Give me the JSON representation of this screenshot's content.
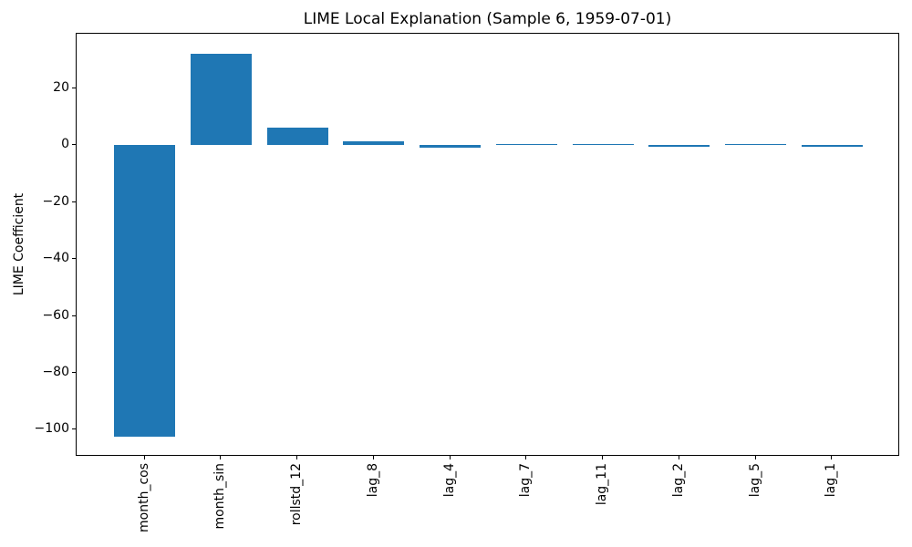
{
  "chart_data": {
    "type": "bar",
    "title": "LIME Local Explanation (Sample 6, 1959-07-01)",
    "ylabel": "LIME Coefficient",
    "xlabel": "",
    "categories": [
      "month_cos",
      "month_sin",
      "rollstd_12",
      "lag_8",
      "lag_4",
      "lag_7",
      "lag_11",
      "lag_2",
      "lag_5",
      "lag_1"
    ],
    "values": [
      -102.4,
      32.1,
      6.1,
      1.3,
      -1.0,
      0.5,
      0.5,
      -0.5,
      0.45,
      -0.55
    ],
    "yticks": [
      20,
      0,
      -20,
      -40,
      -60,
      -80,
      -100
    ],
    "ylim": [
      -109.5,
      39.2
    ],
    "xlim": [
      -0.89,
      9.89
    ],
    "bar_width": 0.8,
    "bar_color": "#1f77b4",
    "grid": false,
    "legend_position": null,
    "x_tick_rotation": 90
  }
}
